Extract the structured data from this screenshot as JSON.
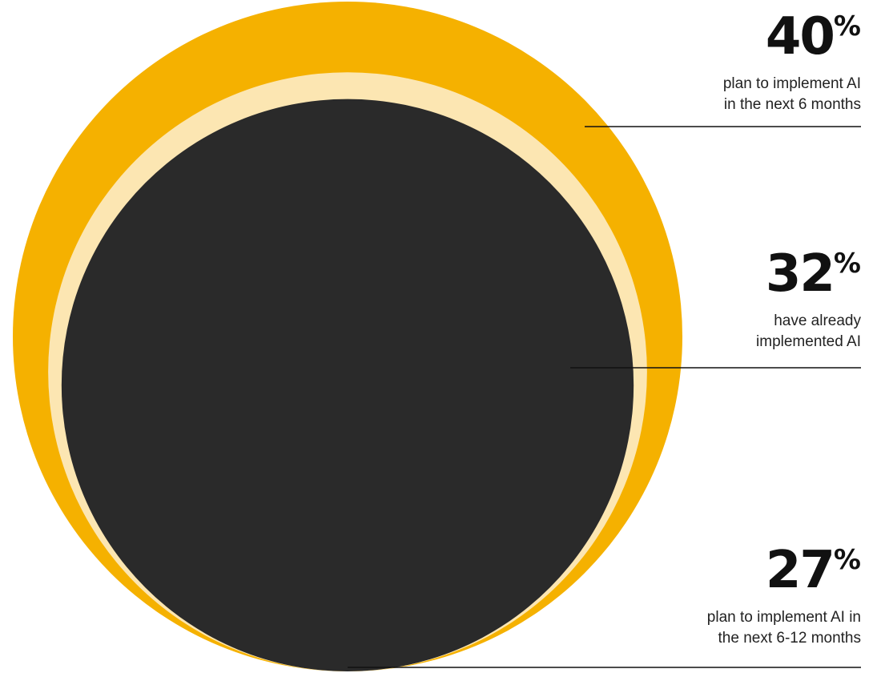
{
  "chart_data": {
    "type": "bubble",
    "series": [
      {
        "value": 40,
        "value_label": "40",
        "unit": "%",
        "description_lines": [
          "plan to implement AI",
          "in the next 6 months"
        ],
        "color": "#F5B100"
      },
      {
        "value": 32,
        "value_label": "32",
        "unit": "%",
        "description_lines": [
          "have already",
          "implemented AI"
        ],
        "color": "#FCE6B2"
      },
      {
        "value": 27,
        "value_label": "27",
        "unit": "%",
        "description_lines": [
          "plan to implement AI in",
          "the next 6-12 months"
        ],
        "color": "#2A2A2A"
      }
    ]
  }
}
